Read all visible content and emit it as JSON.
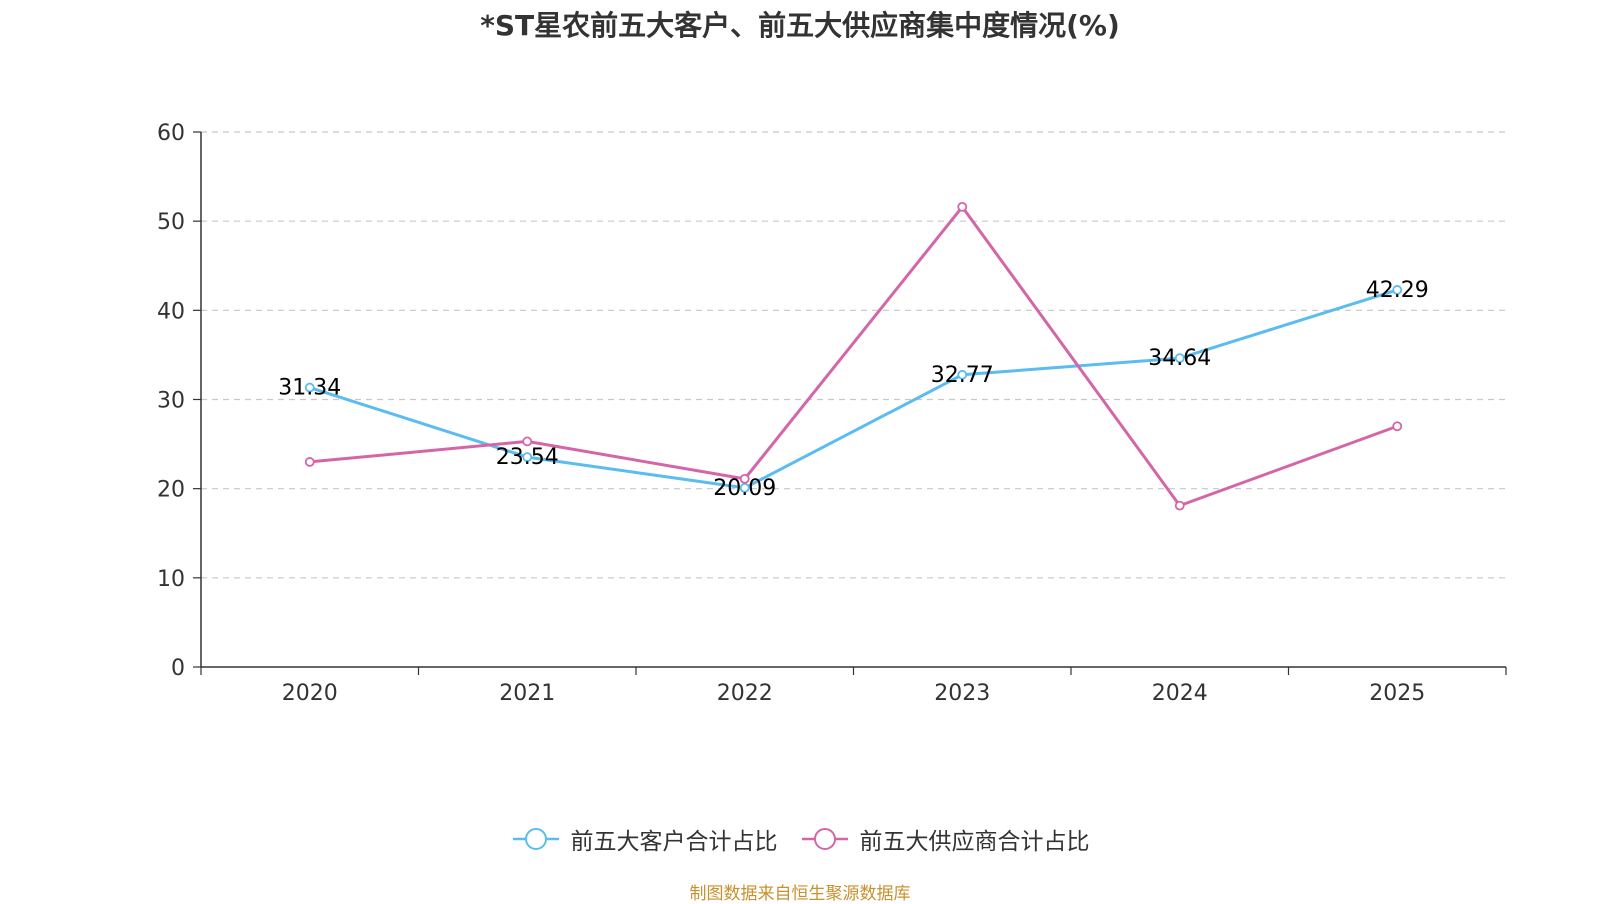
{
  "chart_data": {
    "type": "line",
    "title": "*ST星农前五大客户、前五大供应商集中度情况(%)",
    "categories": [
      "2020",
      "2021",
      "2022",
      "2023",
      "2024",
      "2025"
    ],
    "y_ticks": [
      "0",
      "10",
      "20",
      "30",
      "40",
      "50",
      "60"
    ],
    "ylim": [
      0,
      60
    ],
    "grid": true,
    "legend_position": "bottom-center",
    "series": [
      {
        "name": "前五大客户合计占比",
        "color": "#5bbcf0",
        "values": [
          31.34,
          23.54,
          20.09,
          32.77,
          34.64,
          42.29
        ],
        "labels": [
          "31.34",
          "23.54",
          "20.09",
          "32.77",
          "34.64",
          "42.29"
        ]
      },
      {
        "name": "前五大供应商合计占比",
        "color": "#d466a8",
        "values": [
          23.0,
          25.3,
          21.1,
          51.6,
          18.1,
          27.0
        ]
      }
    ],
    "source": "制图数据来自恒生聚源数据库"
  }
}
